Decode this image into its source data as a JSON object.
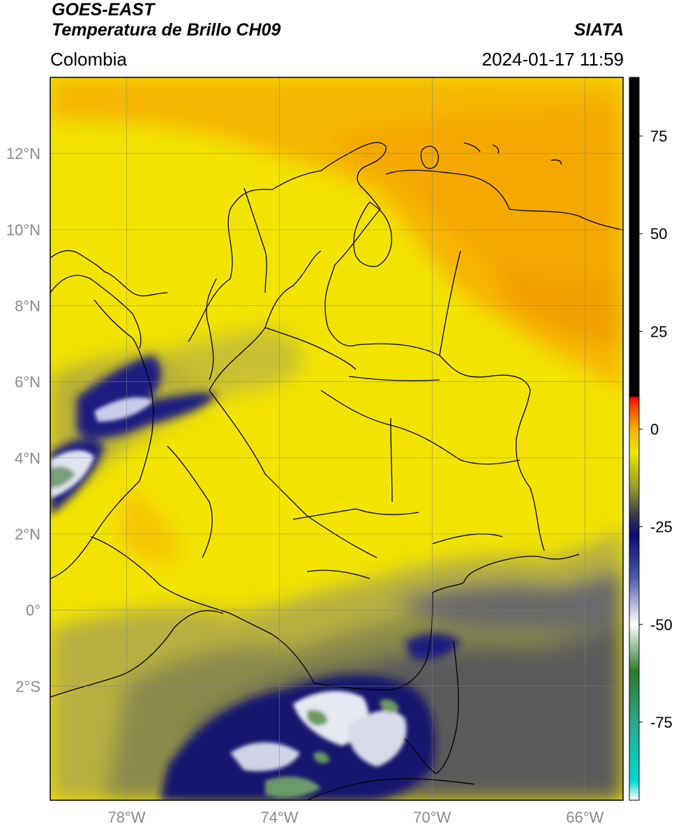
{
  "header": {
    "satellite": "GOES-EAST",
    "product": "Temperatura de Brillo CH09",
    "region": "Colombia",
    "agency": "SIATA",
    "datetime": "2024-01-17 11:59"
  },
  "map": {
    "lon_range": [
      -80,
      -65
    ],
    "lat_range": [
      -5,
      14
    ],
    "lon_ticks": [
      {
        "value": -78,
        "label": "78°W"
      },
      {
        "value": -74,
        "label": "74°W"
      },
      {
        "value": -70,
        "label": "70°W"
      },
      {
        "value": -66,
        "label": "66°W"
      }
    ],
    "lat_ticks": [
      {
        "value": 12,
        "label": "12°N"
      },
      {
        "value": 10,
        "label": "10°N"
      },
      {
        "value": 8,
        "label": "8°N"
      },
      {
        "value": 6,
        "label": "6°N"
      },
      {
        "value": 4,
        "label": "4°N"
      },
      {
        "value": 2,
        "label": "2°N"
      },
      {
        "value": 0,
        "label": "0°"
      },
      {
        "value": -2,
        "label": "2°S"
      }
    ],
    "grid": true
  },
  "colorbar": {
    "range": [
      -95,
      90
    ],
    "ticks": [
      {
        "value": 75,
        "label": "75"
      },
      {
        "value": 50,
        "label": "50"
      },
      {
        "value": 25,
        "label": "25"
      },
      {
        "value": 0,
        "label": "0"
      },
      {
        "value": -25,
        "label": "-25"
      },
      {
        "value": -50,
        "label": "-50"
      },
      {
        "value": -75,
        "label": "-75"
      }
    ],
    "stops": [
      {
        "value": -95,
        "color": "#ffffff"
      },
      {
        "value": -90,
        "color": "#00d8d0"
      },
      {
        "value": -75,
        "color": "#2aa88a"
      },
      {
        "value": -62,
        "color": "#2b7a2b"
      },
      {
        "value": -50,
        "color": "#ffffff"
      },
      {
        "value": -38,
        "color": "#4a5aa8"
      },
      {
        "value": -27,
        "color": "#0a0a70"
      },
      {
        "value": -22,
        "color": "#3a3a4a"
      },
      {
        "value": -15,
        "color": "#9a9a30"
      },
      {
        "value": -6,
        "color": "#e8e800"
      },
      {
        "value": 0,
        "color": "#f7b200"
      },
      {
        "value": 6,
        "color": "#f04000"
      },
      {
        "value": 8,
        "color": "#ff0000"
      },
      {
        "value": 8.5,
        "color": "#000000"
      },
      {
        "value": 90,
        "color": "#000000"
      }
    ]
  },
  "colors": {
    "warm_orange": "#f6a800",
    "yellow": "#f2e600",
    "olive": "#a0a040",
    "cold_navy": "#1a1a7a",
    "coldest_white": "#e8ecf0",
    "coldest_green": "#6a9a60"
  }
}
